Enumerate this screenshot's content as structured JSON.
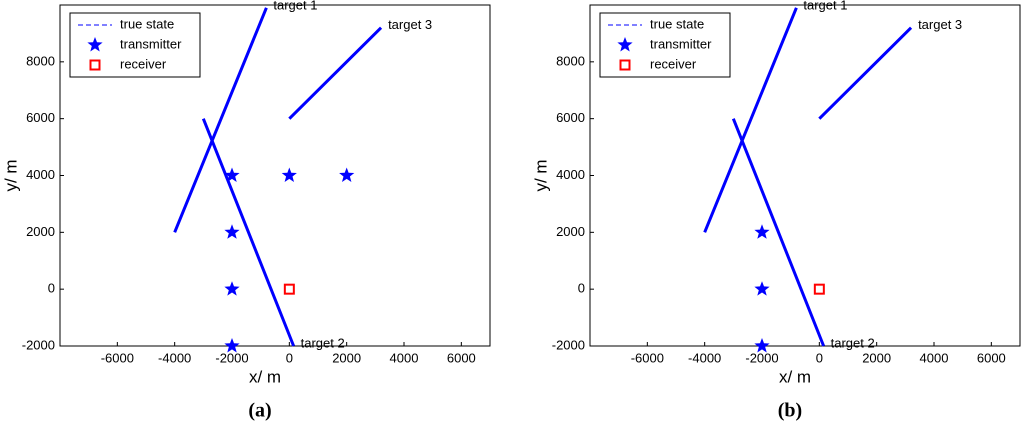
{
  "chart_data": [
    {
      "type": "scatter",
      "caption": "(a)",
      "xlabel": "x/ m",
      "ylabel": "y/ m",
      "xlim": [
        -8000,
        7000
      ],
      "ylim": [
        -2000,
        10000
      ],
      "xticks": [
        -6000,
        -4000,
        -2000,
        0,
        2000,
        4000,
        6000
      ],
      "yticks": [
        -2000,
        0,
        2000,
        4000,
        6000,
        8000
      ],
      "grid": false,
      "legend": "upper left",
      "annotations": [
        "target 1",
        "target 2",
        "target 3"
      ],
      "series": [
        {
          "name": "true state",
          "color": "#0000ff",
          "marker": "line",
          "x": [
            -4000,
            -800,
            null,
            -3000,
            150,
            null,
            0,
            3200
          ],
          "y": [
            2000,
            9900,
            null,
            6000,
            -2000,
            null,
            6000,
            9200
          ]
        },
        {
          "name": "transmitter",
          "color": "#0000ff",
          "marker": "star",
          "x": [
            -2000,
            0,
            2000,
            -2000,
            -2000,
            -2000
          ],
          "y": [
            4000,
            4000,
            4000,
            2000,
            0,
            -2000
          ]
        },
        {
          "name": "receiver",
          "color": "#ff0000",
          "marker": "square",
          "x": [
            0
          ],
          "y": [
            0
          ]
        }
      ]
    },
    {
      "type": "scatter",
      "caption": "(b)",
      "xlabel": "x/ m",
      "ylabel": "y/ m",
      "xlim": [
        -8000,
        7000
      ],
      "ylim": [
        -2000,
        10000
      ],
      "xticks": [
        -6000,
        -4000,
        -2000,
        0,
        2000,
        4000,
        6000
      ],
      "yticks": [
        -2000,
        0,
        2000,
        4000,
        6000,
        8000
      ],
      "grid": false,
      "legend": "upper left",
      "annotations": [
        "target 1",
        "target 2",
        "target 3"
      ],
      "series": [
        {
          "name": "true state",
          "color": "#0000ff",
          "marker": "line",
          "x": [
            -4000,
            -800,
            null,
            -3000,
            150,
            null,
            0,
            3200
          ],
          "y": [
            2000,
            9900,
            null,
            6000,
            -2000,
            null,
            6000,
            9200
          ]
        },
        {
          "name": "transmitter",
          "color": "#0000ff",
          "marker": "star",
          "x": [
            -2000,
            -2000,
            -2000
          ],
          "y": [
            2000,
            0,
            -2000
          ]
        },
        {
          "name": "receiver",
          "color": "#ff0000",
          "marker": "square",
          "x": [
            0
          ],
          "y": [
            0
          ]
        }
      ]
    }
  ]
}
